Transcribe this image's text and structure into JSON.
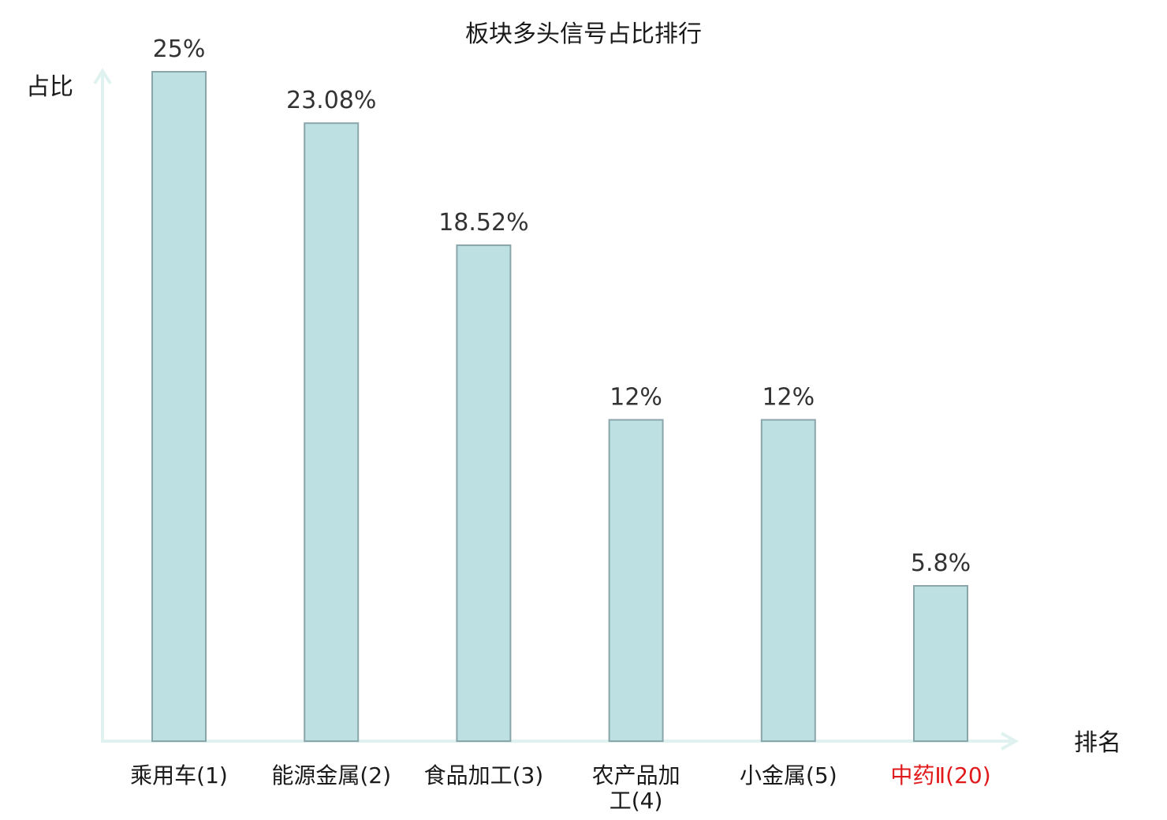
{
  "chart_data": {
    "type": "bar",
    "title": "板块多头信号占比排行",
    "ylabel": "占比",
    "xlabel": "排名",
    "ylim": [
      0,
      25
    ],
    "categories": [
      {
        "name": "乘用车",
        "rank": "(1)",
        "lines": [
          "乘用车(1)"
        ]
      },
      {
        "name": "能源金属",
        "rank": "(2)",
        "lines": [
          "能源金属(2)"
        ]
      },
      {
        "name": "食品加工",
        "rank": "(3)",
        "lines": [
          "食品加工(3)"
        ]
      },
      {
        "name": "农产品加工",
        "rank": "(4)",
        "lines": [
          "农产品加",
          "工(4)"
        ]
      },
      {
        "name": "小金属",
        "rank": "(5)",
        "lines": [
          "小金属(5)"
        ]
      },
      {
        "name": "中药Ⅱ",
        "rank": "(20)",
        "lines": [
          "中药Ⅱ(20)"
        ],
        "highlight": true
      }
    ],
    "values": [
      25,
      23.08,
      18.52,
      12,
      12,
      5.8
    ],
    "value_labels": [
      "25%",
      "23.08%",
      "18.52%",
      "12%",
      "12%",
      "5.8%"
    ],
    "grid": false,
    "legend": "none",
    "colors": {
      "bar_fill": "#bde0e3",
      "bar_stroke": "#8aa6ab",
      "axis": "#dff2ef",
      "highlight_text": "#e0191b"
    }
  }
}
